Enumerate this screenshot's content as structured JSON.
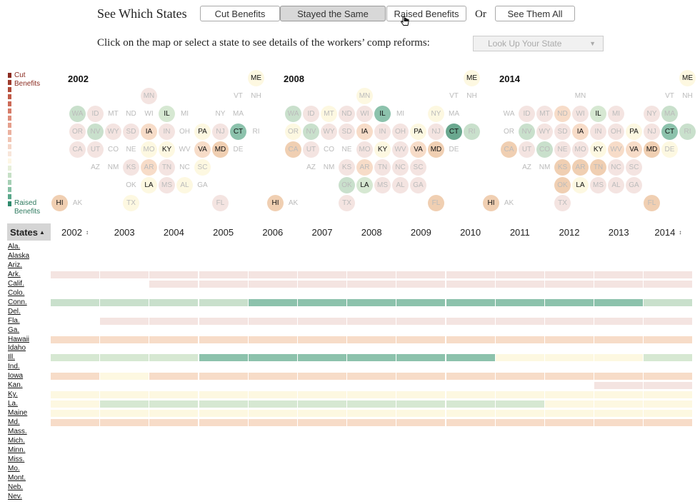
{
  "header": {
    "see_label": "See Which States",
    "buttons": [
      {
        "label": "Cut Benefits",
        "active": false
      },
      {
        "label": "Stayed the Same",
        "active": true
      },
      {
        "label": "Raised Benefits",
        "active": false
      }
    ],
    "or_label": "Or",
    "see_all_label": "See Them All",
    "subline": "Click on the map or select a state to see details of the workers’ comp reforms:",
    "lookup_placeholder": "Look Up Your State"
  },
  "legend": {
    "cut_label": [
      "Cut",
      "Benefits"
    ],
    "raised_label": [
      "Raised",
      "Benefits"
    ]
  },
  "colors": {
    "c1": "#f4e4e1",
    "c2": "#f7dcc8",
    "c3": "#f0cfb2",
    "c4": "#fdf8e1",
    "c5": "#d6e8d2",
    "c6": "#c9e0cc",
    "c7": "#8cc2ac",
    "c8": "#6aa88f",
    "c0": "#ffffff"
  },
  "maps": [
    {
      "year": "2002",
      "states": [
        {
          "ab": "ME",
          "c": "c4",
          "dk": 1
        },
        {
          "ab": "MN",
          "c": "c1"
        },
        {
          "ab": "VT",
          "c": "c0"
        },
        {
          "ab": "NH",
          "c": "c0"
        },
        {
          "ab": "WA",
          "c": "c6"
        },
        {
          "ab": "ID",
          "c": "c1"
        },
        {
          "ab": "MT",
          "c": "c0"
        },
        {
          "ab": "ND",
          "c": "c0"
        },
        {
          "ab": "WI",
          "c": "c0"
        },
        {
          "ab": "IL",
          "c": "c5",
          "dk": 1
        },
        {
          "ab": "MI",
          "c": "c0"
        },
        {
          "ab": "NY",
          "c": "c0"
        },
        {
          "ab": "MA",
          "c": "c0"
        },
        {
          "ab": "OR",
          "c": "c1"
        },
        {
          "ab": "NV",
          "c": "c6"
        },
        {
          "ab": "WY",
          "c": "c1"
        },
        {
          "ab": "SD",
          "c": "c1"
        },
        {
          "ab": "IA",
          "c": "c2",
          "dk": 1
        },
        {
          "ab": "IN",
          "c": "c1"
        },
        {
          "ab": "OH",
          "c": "c0"
        },
        {
          "ab": "PA",
          "c": "c4",
          "dk": 1
        },
        {
          "ab": "NJ",
          "c": "c1"
        },
        {
          "ab": "CT",
          "c": "c7",
          "dk": 1
        },
        {
          "ab": "RI",
          "c": "c0"
        },
        {
          "ab": "CA",
          "c": "c1"
        },
        {
          "ab": "UT",
          "c": "c1"
        },
        {
          "ab": "CO",
          "c": "c0"
        },
        {
          "ab": "NE",
          "c": "c0"
        },
        {
          "ab": "MO",
          "c": "c4"
        },
        {
          "ab": "KY",
          "c": "c4",
          "dk": 1
        },
        {
          "ab": "WV",
          "c": "c0"
        },
        {
          "ab": "VA",
          "c": "c2",
          "dk": 1
        },
        {
          "ab": "MD",
          "c": "c3",
          "dk": 1
        },
        {
          "ab": "DE",
          "c": "c0"
        },
        {
          "ab": "AZ",
          "c": "c0"
        },
        {
          "ab": "NM",
          "c": "c0"
        },
        {
          "ab": "KS",
          "c": "c1"
        },
        {
          "ab": "AR",
          "c": "c2"
        },
        {
          "ab": "TN",
          "c": "c1"
        },
        {
          "ab": "NC",
          "c": "c0"
        },
        {
          "ab": "SC",
          "c": "c4"
        },
        {
          "ab": "OK",
          "c": "c0"
        },
        {
          "ab": "LA",
          "c": "c4",
          "dk": 1
        },
        {
          "ab": "MS",
          "c": "c1"
        },
        {
          "ab": "AL",
          "c": "c4"
        },
        {
          "ab": "GA",
          "c": "c0"
        },
        {
          "ab": "HI",
          "c": "c3",
          "dk": 1
        },
        {
          "ab": "AK",
          "c": "c0"
        },
        {
          "ab": "TX",
          "c": "c4"
        },
        {
          "ab": "FL",
          "c": "c1"
        }
      ]
    },
    {
      "year": "2008",
      "states": [
        {
          "ab": "ME",
          "c": "c4",
          "dk": 1
        },
        {
          "ab": "MN",
          "c": "c4"
        },
        {
          "ab": "VT",
          "c": "c0"
        },
        {
          "ab": "NH",
          "c": "c0"
        },
        {
          "ab": "WA",
          "c": "c6"
        },
        {
          "ab": "ID",
          "c": "c1"
        },
        {
          "ab": "MT",
          "c": "c4"
        },
        {
          "ab": "ND",
          "c": "c1"
        },
        {
          "ab": "WI",
          "c": "c1"
        },
        {
          "ab": "IL",
          "c": "c7",
          "dk": 1
        },
        {
          "ab": "MI",
          "c": "c0"
        },
        {
          "ab": "NY",
          "c": "c4"
        },
        {
          "ab": "MA",
          "c": "c0"
        },
        {
          "ab": "OR",
          "c": "c4"
        },
        {
          "ab": "NV",
          "c": "c6"
        },
        {
          "ab": "WY",
          "c": "c1"
        },
        {
          "ab": "SD",
          "c": "c1"
        },
        {
          "ab": "IA",
          "c": "c2",
          "dk": 1
        },
        {
          "ab": "IN",
          "c": "c1"
        },
        {
          "ab": "OH",
          "c": "c1"
        },
        {
          "ab": "PA",
          "c": "c4",
          "dk": 1
        },
        {
          "ab": "NJ",
          "c": "c1"
        },
        {
          "ab": "CT",
          "c": "c8",
          "dk": 1
        },
        {
          "ab": "RI",
          "c": "c6"
        },
        {
          "ab": "CA",
          "c": "c3"
        },
        {
          "ab": "UT",
          "c": "c1"
        },
        {
          "ab": "CO",
          "c": "c0"
        },
        {
          "ab": "NE",
          "c": "c0"
        },
        {
          "ab": "MO",
          "c": "c1"
        },
        {
          "ab": "KY",
          "c": "c4",
          "dk": 1
        },
        {
          "ab": "WV",
          "c": "c1"
        },
        {
          "ab": "VA",
          "c": "c2",
          "dk": 1
        },
        {
          "ab": "MD",
          "c": "c3",
          "dk": 1
        },
        {
          "ab": "DE",
          "c": "c0"
        },
        {
          "ab": "AZ",
          "c": "c0"
        },
        {
          "ab": "NM",
          "c": "c0"
        },
        {
          "ab": "KS",
          "c": "c1"
        },
        {
          "ab": "AR",
          "c": "c2"
        },
        {
          "ab": "TN",
          "c": "c1"
        },
        {
          "ab": "NC",
          "c": "c1"
        },
        {
          "ab": "SC",
          "c": "c1"
        },
        {
          "ab": "OK",
          "c": "c6"
        },
        {
          "ab": "LA",
          "c": "c5",
          "dk": 1
        },
        {
          "ab": "MS",
          "c": "c1"
        },
        {
          "ab": "AL",
          "c": "c1"
        },
        {
          "ab": "GA",
          "c": "c1"
        },
        {
          "ab": "HI",
          "c": "c3",
          "dk": 1
        },
        {
          "ab": "AK",
          "c": "c0"
        },
        {
          "ab": "TX",
          "c": "c1"
        },
        {
          "ab": "FL",
          "c": "c3"
        }
      ]
    },
    {
      "year": "2014",
      "states": [
        {
          "ab": "ME",
          "c": "c4",
          "dk": 1
        },
        {
          "ab": "MN",
          "c": "c0"
        },
        {
          "ab": "VT",
          "c": "c0"
        },
        {
          "ab": "NH",
          "c": "c0"
        },
        {
          "ab": "WA",
          "c": "c0"
        },
        {
          "ab": "ID",
          "c": "c1"
        },
        {
          "ab": "MT",
          "c": "c1"
        },
        {
          "ab": "ND",
          "c": "c2"
        },
        {
          "ab": "WI",
          "c": "c1"
        },
        {
          "ab": "IL",
          "c": "c5",
          "dk": 1
        },
        {
          "ab": "MI",
          "c": "c1"
        },
        {
          "ab": "NY",
          "c": "c1"
        },
        {
          "ab": "MA",
          "c": "c6"
        },
        {
          "ab": "OR",
          "c": "c0"
        },
        {
          "ab": "NV",
          "c": "c6"
        },
        {
          "ab": "WY",
          "c": "c1"
        },
        {
          "ab": "SD",
          "c": "c1"
        },
        {
          "ab": "IA",
          "c": "c2",
          "dk": 1
        },
        {
          "ab": "IN",
          "c": "c1"
        },
        {
          "ab": "OH",
          "c": "c1"
        },
        {
          "ab": "PA",
          "c": "c4",
          "dk": 1
        },
        {
          "ab": "NJ",
          "c": "c1"
        },
        {
          "ab": "CT",
          "c": "c7",
          "dk": 1
        },
        {
          "ab": "RI",
          "c": "c6"
        },
        {
          "ab": "CA",
          "c": "c3"
        },
        {
          "ab": "UT",
          "c": "c1"
        },
        {
          "ab": "CO",
          "c": "c6"
        },
        {
          "ab": "NE",
          "c": "c1"
        },
        {
          "ab": "MO",
          "c": "c1"
        },
        {
          "ab": "KY",
          "c": "c4",
          "dk": 1
        },
        {
          "ab": "WV",
          "c": "c2"
        },
        {
          "ab": "VA",
          "c": "c2",
          "dk": 1
        },
        {
          "ab": "MD",
          "c": "c3",
          "dk": 1
        },
        {
          "ab": "DE",
          "c": "c4"
        },
        {
          "ab": "AZ",
          "c": "c0"
        },
        {
          "ab": "NM",
          "c": "c0"
        },
        {
          "ab": "KS",
          "c": "c3"
        },
        {
          "ab": "AR",
          "c": "c3"
        },
        {
          "ab": "TN",
          "c": "c3"
        },
        {
          "ab": "NC",
          "c": "c1"
        },
        {
          "ab": "SC",
          "c": "c1"
        },
        {
          "ab": "OK",
          "c": "c3"
        },
        {
          "ab": "LA",
          "c": "c4",
          "dk": 1
        },
        {
          "ab": "MS",
          "c": "c1"
        },
        {
          "ab": "AL",
          "c": "c1"
        },
        {
          "ab": "GA",
          "c": "c1"
        },
        {
          "ab": "HI",
          "c": "c3",
          "dk": 1
        },
        {
          "ab": "AK",
          "c": "c0"
        },
        {
          "ab": "TX",
          "c": "c1"
        },
        {
          "ab": "FL",
          "c": "c3"
        }
      ]
    }
  ],
  "grid": {
    "states_header": "States",
    "years": [
      "2002",
      "2003",
      "2004",
      "2005",
      "2006",
      "2007",
      "2008",
      "2009",
      "2010",
      "2011",
      "2012",
      "2013",
      "2014"
    ],
    "states": [
      "Ala.",
      "Alaska",
      "Ariz.",
      "Ark.",
      "Calif.",
      "Colo.",
      "Conn.",
      "Del.",
      "Fla.",
      "Ga.",
      "Hawaii",
      "Idaho",
      "Ill.",
      "Ind.",
      "Iowa",
      "Kan.",
      "Ky.",
      "La.",
      "Maine",
      "Md.",
      "Mass.",
      "Mich.",
      "Minn.",
      "Miss.",
      "Mo.",
      "Mont.",
      "Neb.",
      "Nev."
    ],
    "rows": [
      [
        "c0",
        "c0",
        "c0",
        "c0",
        "c0",
        "c0",
        "c0",
        "c0",
        "c0",
        "c0",
        "c0",
        "c0",
        "c0"
      ],
      [
        "c0",
        "c0",
        "c0",
        "c0",
        "c0",
        "c0",
        "c0",
        "c0",
        "c0",
        "c0",
        "c0",
        "c0",
        "c0"
      ],
      [
        "c0",
        "c0",
        "c0",
        "c0",
        "c0",
        "c0",
        "c0",
        "c0",
        "c0",
        "c0",
        "c0",
        "c0",
        "c0"
      ],
      [
        "c1",
        "c1",
        "c1",
        "c1",
        "c1",
        "c1",
        "c1",
        "c1",
        "c1",
        "c1",
        "c1",
        "c1",
        "c1"
      ],
      [
        "c0",
        "c0",
        "c1",
        "c1",
        "c1",
        "c1",
        "c1",
        "c1",
        "c1",
        "c1",
        "c1",
        "c1",
        "c1"
      ],
      [
        "c0",
        "c0",
        "c0",
        "c0",
        "c0",
        "c0",
        "c0",
        "c0",
        "c0",
        "c0",
        "c0",
        "c0",
        "c0"
      ],
      [
        "c6",
        "c6",
        "c6",
        "c6",
        "c7",
        "c7",
        "c7",
        "c7",
        "c7",
        "c7",
        "c7",
        "c7",
        "c6"
      ],
      [
        "c0",
        "c0",
        "c0",
        "c0",
        "c0",
        "c0",
        "c0",
        "c0",
        "c0",
        "c0",
        "c0",
        "c0",
        "c0"
      ],
      [
        "c0",
        "c1",
        "c1",
        "c1",
        "c1",
        "c1",
        "c1",
        "c1",
        "c1",
        "c1",
        "c1",
        "c1",
        "c1"
      ],
      [
        "c0",
        "c0",
        "c0",
        "c0",
        "c0",
        "c0",
        "c0",
        "c0",
        "c0",
        "c0",
        "c0",
        "c0",
        "c0"
      ],
      [
        "c2",
        "c2",
        "c2",
        "c2",
        "c2",
        "c2",
        "c2",
        "c2",
        "c2",
        "c2",
        "c2",
        "c2",
        "c2"
      ],
      [
        "c0",
        "c0",
        "c0",
        "c0",
        "c0",
        "c0",
        "c0",
        "c0",
        "c0",
        "c0",
        "c0",
        "c0",
        "c0"
      ],
      [
        "c5",
        "c5",
        "c5",
        "c7",
        "c7",
        "c7",
        "c7",
        "c7",
        "c7",
        "c4",
        "c4",
        "c4",
        "c5"
      ],
      [
        "c0",
        "c0",
        "c0",
        "c0",
        "c0",
        "c0",
        "c0",
        "c0",
        "c0",
        "c0",
        "c0",
        "c0",
        "c0"
      ],
      [
        "c2",
        "c4",
        "c2",
        "c2",
        "c2",
        "c2",
        "c2",
        "c2",
        "c2",
        "c2",
        "c2",
        "c2",
        "c2"
      ],
      [
        "c0",
        "c0",
        "c0",
        "c0",
        "c0",
        "c0",
        "c0",
        "c0",
        "c0",
        "c0",
        "c0",
        "c1",
        "c1"
      ],
      [
        "c4",
        "c4",
        "c4",
        "c4",
        "c4",
        "c4",
        "c4",
        "c4",
        "c4",
        "c4",
        "c4",
        "c4",
        "c4"
      ],
      [
        "c4",
        "c5",
        "c5",
        "c5",
        "c5",
        "c5",
        "c5",
        "c5",
        "c5",
        "c5",
        "c4",
        "c4",
        "c4"
      ],
      [
        "c4",
        "c4",
        "c4",
        "c4",
        "c4",
        "c4",
        "c4",
        "c4",
        "c4",
        "c4",
        "c4",
        "c4",
        "c4"
      ],
      [
        "c2",
        "c2",
        "c2",
        "c2",
        "c2",
        "c2",
        "c2",
        "c2",
        "c2",
        "c2",
        "c2",
        "c2",
        "c2"
      ],
      [
        "c0",
        "c0",
        "c0",
        "c0",
        "c0",
        "c0",
        "c0",
        "c0",
        "c0",
        "c0",
        "c0",
        "c0",
        "c0"
      ],
      [
        "c0",
        "c0",
        "c0",
        "c0",
        "c0",
        "c0",
        "c0",
        "c0",
        "c0",
        "c0",
        "c0",
        "c0",
        "c0"
      ],
      [
        "c0",
        "c0",
        "c0",
        "c0",
        "c0",
        "c0",
        "c0",
        "c0",
        "c0",
        "c0",
        "c0",
        "c0",
        "c0"
      ],
      [
        "c0",
        "c0",
        "c0",
        "c0",
        "c0",
        "c0",
        "c0",
        "c0",
        "c0",
        "c0",
        "c0",
        "c0",
        "c0"
      ],
      [
        "c0",
        "c0",
        "c0",
        "c0",
        "c0",
        "c0",
        "c0",
        "c0",
        "c0",
        "c0",
        "c0",
        "c0",
        "c0"
      ],
      [
        "c0",
        "c0",
        "c0",
        "c0",
        "c0",
        "c0",
        "c0",
        "c0",
        "c0",
        "c0",
        "c0",
        "c0",
        "c0"
      ],
      [
        "c0",
        "c0",
        "c0",
        "c0",
        "c0",
        "c0",
        "c0",
        "c0",
        "c0",
        "c0",
        "c0",
        "c0",
        "c0"
      ],
      [
        "c0",
        "c0",
        "c0",
        "c0",
        "c0",
        "c0",
        "c0",
        "c0",
        "c0",
        "c0",
        "c0",
        "c0",
        "c0"
      ]
    ]
  }
}
